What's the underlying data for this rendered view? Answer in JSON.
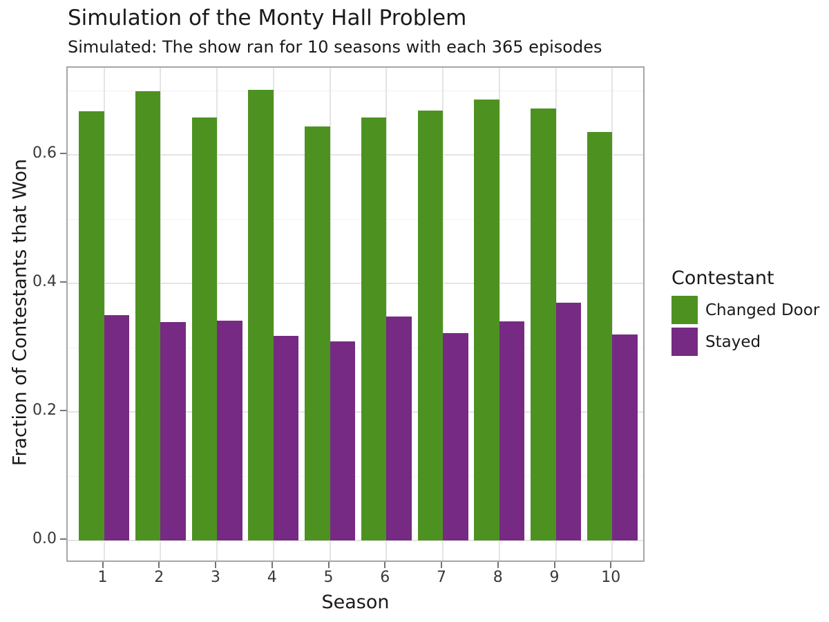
{
  "title": "Simulation of the Monty Hall Problem",
  "subtitle": "Simulated: The show ran for 10 seasons with each 365 episodes",
  "chart_data": {
    "type": "bar",
    "grouped": true,
    "title": "Simulation of the Monty Hall Problem",
    "subtitle": "Simulated: The show ran for 10 seasons with each 365 episodes",
    "xlabel": "Season",
    "ylabel": "Fraction of Contestants that Won",
    "categories": [
      "1",
      "2",
      "3",
      "4",
      "5",
      "6",
      "7",
      "8",
      "9",
      "10"
    ],
    "series": [
      {
        "name": "Changed Door",
        "color": "#4d9221",
        "values": [
          0.668,
          0.699,
          0.658,
          0.701,
          0.644,
          0.658,
          0.669,
          0.686,
          0.672,
          0.636
        ]
      },
      {
        "name": "Stayed",
        "color": "#762a83",
        "values": [
          0.351,
          0.34,
          0.342,
          0.318,
          0.31,
          0.348,
          0.323,
          0.341,
          0.37,
          0.32
        ]
      }
    ],
    "yticks": [
      0.0,
      0.2,
      0.4,
      0.6
    ],
    "ytick_labels": [
      "0.0",
      "0.2",
      "0.4",
      "0.6"
    ],
    "yminor": [
      0.1,
      0.3,
      0.5,
      0.7
    ],
    "ylim": [
      -0.035,
      0.735
    ],
    "grid": "on",
    "legend": {
      "title": "Contestant",
      "position": "right",
      "entries": [
        "Changed Door",
        "Stayed"
      ]
    }
  },
  "colors": {
    "grid_major": "#e4e4e4",
    "grid_minor": "#f2f2f2",
    "panel_border": "#a6a6a6",
    "tick": "#737373",
    "text": "#1a1a1a",
    "background": "#ffffff"
  }
}
